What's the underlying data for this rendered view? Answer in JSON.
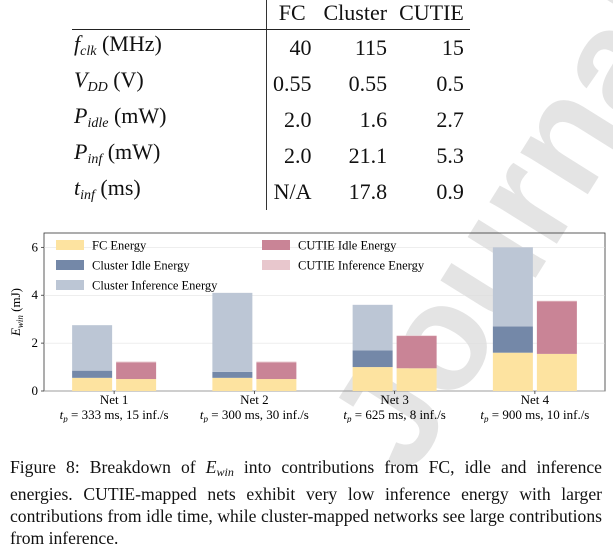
{
  "table": {
    "columns": [
      "FC",
      "Cluster",
      "CUTIE"
    ],
    "rows": [
      {
        "symbol": "f",
        "sub": "clk",
        "unit": "(MHz)",
        "values": [
          "40",
          "115",
          "15"
        ]
      },
      {
        "symbol": "V",
        "sub": "DD",
        "unit": "(V)",
        "values": [
          "0.55",
          "0.55",
          "0.5"
        ]
      },
      {
        "symbol": "P",
        "sub": "idle",
        "unit": "(mW)",
        "values": [
          "2.0",
          "1.6",
          "2.7"
        ]
      },
      {
        "symbol": "P",
        "sub": "inf",
        "unit": "(mW)",
        "values": [
          "2.0",
          "21.1",
          "5.3"
        ]
      },
      {
        "symbol": "t",
        "sub": "inf",
        "unit": "(ms)",
        "values": [
          "N/A",
          "17.8",
          "0.9"
        ]
      }
    ]
  },
  "chart_data": {
    "type": "bar",
    "stacked": true,
    "ylabel_symbol": "E",
    "ylabel_sub": "win",
    "ylabel_unit": "(mJ)",
    "ylim": [
      0,
      6.6
    ],
    "yticks": [
      "0",
      "2",
      "4",
      "6"
    ],
    "grid": true,
    "legend_position": "top-left",
    "categories": [
      "Net 1",
      "Net 2",
      "Net 3",
      "Net 4"
    ],
    "category_sublabels": [
      {
        "sym": "t",
        "sub": "p",
        "rest": " = 333 ms, 15 inf./s"
      },
      {
        "sym": "t",
        "sub": "p",
        "rest": " = 300 ms, 30 inf./s"
      },
      {
        "sym": "t",
        "sub": "p",
        "rest": " = 625 ms, 8 inf./s"
      },
      {
        "sym": "t",
        "sub": "p",
        "rest": " = 900 ms, 10 inf./s"
      }
    ],
    "legend": [
      {
        "name": "FC Energy",
        "color": "#fde3a0"
      },
      {
        "name": "Cluster Idle Energy",
        "color": "#7488a8"
      },
      {
        "name": "Cluster Inference Energy",
        "color": "#bcc6d5"
      },
      {
        "name": "CUTIE Idle Energy",
        "color": "#c98496"
      },
      {
        "name": "CUTIE Inference Energy",
        "color": "#e8c7cd"
      }
    ],
    "bars": {
      "cluster": {
        "fc": [
          0.55,
          0.55,
          1.0,
          1.6
        ],
        "idle": [
          0.3,
          0.25,
          0.7,
          1.1
        ],
        "inference": [
          1.9,
          3.3,
          1.9,
          3.3
        ]
      },
      "cutie": {
        "fc": [
          0.5,
          0.5,
          0.95,
          1.55
        ],
        "idle": [
          0.7,
          0.7,
          1.35,
          2.2
        ],
        "inference": [
          0.03,
          0.03,
          0.02,
          0.02
        ]
      }
    }
  },
  "caption": {
    "prefix": "Figure 8: Breakdown of ",
    "sym": "E",
    "sub": "win",
    "rest": " into contributions from FC, idle and inference energies. CUTIE-mapped nets exhibit very low inference energy with larger contributions from idle time, while cluster-mapped networks see large contributions from inference."
  },
  "watermark": "Journal"
}
